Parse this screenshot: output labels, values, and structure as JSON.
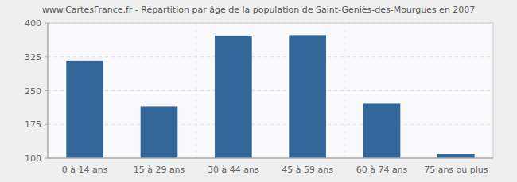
{
  "chart_data": {
    "type": "bar",
    "title": "www.CartesFrance.fr - Répartition par âge de la population de Saint-Geniès-des-Mourgues en 2007",
    "categories": [
      "0 à 14 ans",
      "15 à 29 ans",
      "30 à 44 ans",
      "45 à 59 ans",
      "60 à 74 ans",
      "75 ans ou plus"
    ],
    "values": [
      316,
      215,
      372,
      373,
      222,
      110
    ],
    "color": "#336699",
    "ylim": [
      100,
      400
    ],
    "yticks": [
      100,
      175,
      250,
      325,
      400
    ],
    "grid": true
  }
}
